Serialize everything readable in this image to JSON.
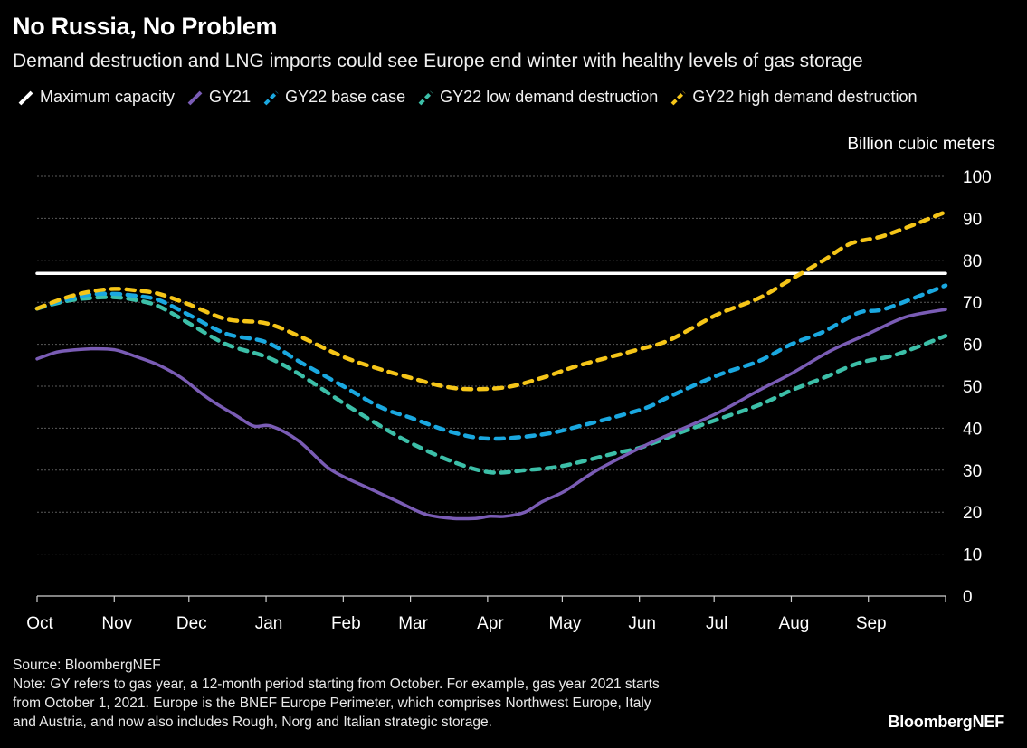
{
  "header": {
    "title": "No Russia, No Problem",
    "subtitle": "Demand destruction and LNG imports could see Europe end winter with healthy levels of gas storage"
  },
  "legend": [
    {
      "label": "Maximum capacity",
      "color": "#ffffff",
      "style": "solid"
    },
    {
      "label": "GY21",
      "color": "#7a5cb5",
      "style": "solid"
    },
    {
      "label": "GY22 base case",
      "color": "#1aa8e0",
      "style": "dashed"
    },
    {
      "label": "GY22 low demand destruction",
      "color": "#3cbfa8",
      "style": "dashed"
    },
    {
      "label": "GY22 high demand destruction",
      "color": "#f5c518",
      "style": "dashed"
    }
  ],
  "footer": {
    "source": "Source: BloombergNEF",
    "note_line1": "Note: GY refers to gas year, a 12-month period starting from October. For example, gas year 2021 starts",
    "note_line2": "from October 1, 2021. Europe is the BNEF Europe Perimeter, which comprises Northwest Europe, Italy",
    "note_line3": "and Austria, and now also includes Rough, Norg and Italian strategic storage.",
    "logo": "BloombergNEF"
  },
  "chart_data": {
    "type": "line",
    "title": "No Russia, No Problem",
    "subtitle": "Demand destruction and LNG imports could see Europe end winter with healthy levels of gas storage",
    "xlabel": "",
    "ylabel": "Billion cubic meters",
    "x_unit": "days since October 1",
    "xlim": [
      0,
      365
    ],
    "ylim": [
      0,
      100
    ],
    "y_ticks": [
      0,
      10,
      20,
      30,
      40,
      50,
      60,
      70,
      80,
      90,
      100
    ],
    "x_ticks": [
      {
        "label": "Oct",
        "day": 0
      },
      {
        "label": "Nov",
        "day": 31
      },
      {
        "label": "Dec",
        "day": 61
      },
      {
        "label": "Jan",
        "day": 92
      },
      {
        "label": "Feb",
        "day": 123
      },
      {
        "label": "Mar",
        "day": 150
      },
      {
        "label": "Apr",
        "day": 181
      },
      {
        "label": "May",
        "day": 211
      },
      {
        "label": "Jun",
        "day": 242
      },
      {
        "label": "Jul",
        "day": 272
      },
      {
        "label": "Aug",
        "day": 303
      },
      {
        "label": "Sep",
        "day": 334
      }
    ],
    "grid": "horizontal dotted",
    "y_axis_position": "right",
    "legend_position": "top-left",
    "series": [
      {
        "name": "Maximum capacity",
        "color": "#ffffff",
        "style": "solid",
        "x": [
          0,
          365
        ],
        "y": [
          76.9,
          76.9
        ]
      },
      {
        "name": "GY21",
        "color": "#7a5cb5",
        "style": "solid",
        "x": [
          0,
          7,
          12,
          21,
          31,
          40,
          49,
          58,
          69,
          80,
          87,
          94,
          105,
          116,
          123,
          134,
          145,
          156,
          167,
          176,
          182,
          188,
          196,
          203,
          212,
          225,
          243,
          254,
          273,
          290,
          303,
          319,
          334,
          349,
          365
        ],
        "y": [
          56.5,
          58,
          58.5,
          58.9,
          58.7,
          57,
          55,
          52,
          47,
          43,
          40.5,
          40.5,
          37,
          31,
          28.5,
          25.5,
          22.5,
          19.5,
          18.5,
          18.5,
          19,
          19,
          20,
          22.5,
          25,
          30,
          35.5,
          38.5,
          43.5,
          49,
          53,
          58.5,
          62.5,
          66.5,
          68.3
        ]
      },
      {
        "name": "GY22 base case",
        "color": "#1aa8e0",
        "style": "dashed",
        "x": [
          0,
          11,
          21,
          31,
          40,
          49,
          61,
          76,
          92,
          105,
          123,
          138,
          150,
          167,
          182,
          203,
          218,
          243,
          254,
          273,
          290,
          303,
          316,
          330,
          341,
          365
        ],
        "y": [
          68.5,
          70.5,
          71.8,
          72,
          71.5,
          70.5,
          67,
          62.5,
          60.5,
          56,
          50,
          45,
          42.5,
          39,
          37.5,
          38.5,
          40.5,
          44.5,
          47.5,
          52.5,
          56,
          60,
          63,
          67.5,
          68.5,
          74
        ]
      },
      {
        "name": "GY22 low demand destruction",
        "color": "#3cbfa8",
        "style": "dashed",
        "x": [
          0,
          11,
          21,
          31,
          40,
          49,
          61,
          76,
          92,
          105,
          123,
          138,
          150,
          167,
          182,
          196,
          211,
          232,
          243,
          261,
          273,
          290,
          303,
          316,
          330,
          345,
          365
        ],
        "y": [
          68.5,
          70.2,
          71,
          71.2,
          70.5,
          69,
          65,
          60,
          57,
          53,
          46,
          40.5,
          36.5,
          32,
          29.5,
          30,
          31,
          34,
          35.5,
          39.5,
          42,
          45.5,
          49,
          52,
          55.5,
          57.5,
          62
        ]
      },
      {
        "name": "GY22 high demand destruction",
        "color": "#f5c518",
        "style": "dashed",
        "x": [
          0,
          11,
          21,
          31,
          40,
          49,
          61,
          76,
          92,
          105,
          123,
          138,
          150,
          163,
          174,
          189,
          203,
          218,
          240,
          254,
          273,
          290,
          303,
          316,
          327,
          341,
          365
        ],
        "y": [
          68.5,
          71,
          72.5,
          73.2,
          72.8,
          72,
          69.5,
          66,
          65,
          62,
          57,
          54,
          52,
          50,
          49.3,
          49.8,
          52,
          55,
          58.5,
          61,
          67,
          71,
          75.5,
          80,
          84,
          86,
          91.5
        ]
      }
    ]
  }
}
